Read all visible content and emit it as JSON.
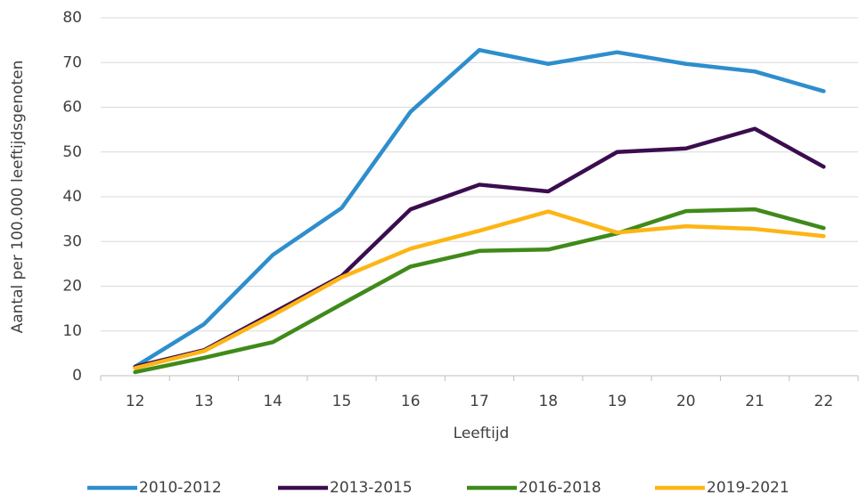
{
  "chart_data": {
    "type": "line",
    "xlabel": "Leeftijd",
    "ylabel": "Aantal per 100.000 leeftijdsgenoten",
    "categories": [
      "12",
      "13",
      "14",
      "15",
      "16",
      "17",
      "18",
      "19",
      "20",
      "21",
      "22"
    ],
    "series": [
      {
        "name": "2010-2012",
        "color": "#2e8ecd",
        "values": [
          2,
          11.5,
          27,
          37.5,
          59,
          72.8,
          69.7,
          72.3,
          69.7,
          68,
          63.6
        ]
      },
      {
        "name": "2013-2015",
        "color": "#3b0d4f",
        "values": [
          2,
          5.7,
          14,
          22.3,
          37.2,
          42.7,
          41.2,
          50,
          50.8,
          55.2,
          46.7
        ]
      },
      {
        "name": "2016-2018",
        "color": "#3f8a1a",
        "values": [
          0.8,
          4,
          7.5,
          16,
          24.4,
          27.9,
          28.2,
          31.8,
          36.8,
          37.2,
          33
        ]
      },
      {
        "name": "2019-2021",
        "color": "#fdb515",
        "values": [
          1.7,
          5.5,
          13.5,
          22,
          28.4,
          32.4,
          36.7,
          32,
          33.4,
          32.8,
          31.2
        ]
      }
    ],
    "ylim": [
      0,
      80
    ],
    "yticks": [
      0,
      10,
      20,
      30,
      40,
      50,
      60,
      70,
      80
    ],
    "grid": true,
    "legend": "bottom"
  }
}
